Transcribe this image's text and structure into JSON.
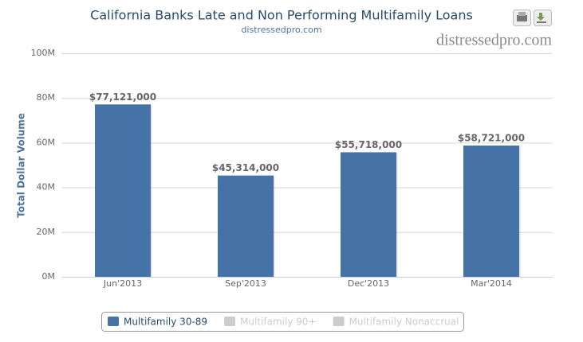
{
  "chart_data": {
    "type": "bar",
    "title": "California Banks Late and Non Performing Multifamily Loans",
    "subtitle": "distressedpro.com",
    "watermark": "distressedpro.com",
    "y_axis_label": "Total Dollar Volume",
    "categories": [
      "Jun'2013",
      "Sep'2013",
      "Dec'2013",
      "Mar'2014"
    ],
    "series": [
      {
        "name": "Multifamily 30-89",
        "color": "#4572a7",
        "visible": true,
        "values": [
          77121000,
          45314000,
          55718000,
          58721000
        ],
        "value_labels": [
          "$77,121,000",
          "$45,314,000",
          "$55,718,000",
          "$58,721,000"
        ]
      },
      {
        "name": "Multifamily 90+",
        "color": "#aa4643",
        "visible": false,
        "values": [
          null,
          null,
          null,
          null
        ]
      },
      {
        "name": "Multifamily Nonaccrual",
        "color": "#89a54e",
        "visible": false,
        "values": [
          null,
          null,
          null,
          null
        ]
      }
    ],
    "ylim": [
      0,
      100000000
    ],
    "yticks": [
      {
        "value": 0,
        "label": "0M"
      },
      {
        "value": 20000000,
        "label": "20M"
      },
      {
        "value": 40000000,
        "label": "40M"
      },
      {
        "value": 60000000,
        "label": "60M"
      },
      {
        "value": 80000000,
        "label": "80M"
      },
      {
        "value": 100000000,
        "label": "100M"
      }
    ],
    "grid": true
  }
}
